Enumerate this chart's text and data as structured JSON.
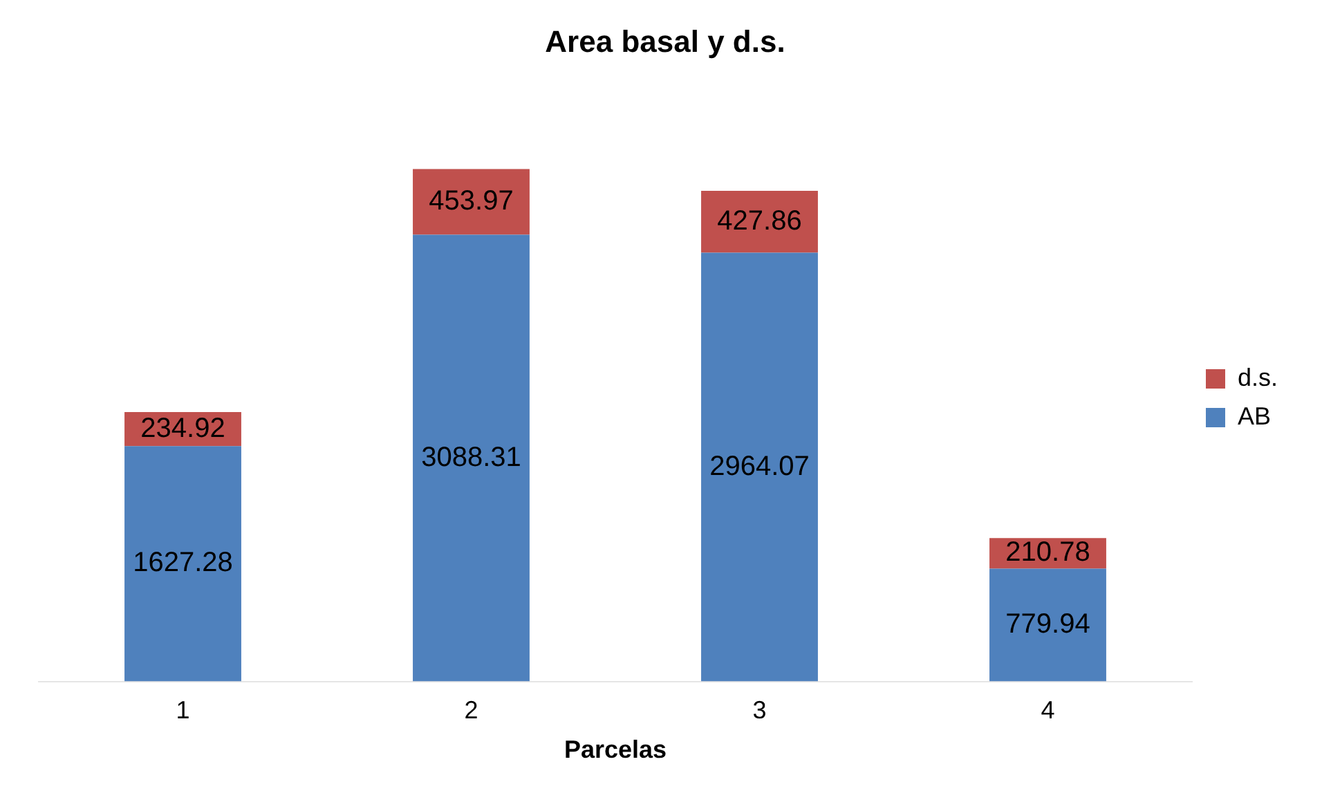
{
  "chart_data": {
    "type": "bar",
    "title": "Area basal y d.s.",
    "xlabel": "Parcelas",
    "categories": [
      "1",
      "2",
      "3",
      "4"
    ],
    "stacked": true,
    "data_labels": true,
    "legend": "right",
    "series": [
      {
        "name": "AB",
        "color": "#4f81bd",
        "values": [
          1627.28,
          3088.31,
          2964.07,
          779.94
        ]
      },
      {
        "name": "d.s.",
        "color": "#c0504d",
        "values": [
          234.92,
          453.97,
          427.86,
          210.78
        ]
      }
    ]
  }
}
